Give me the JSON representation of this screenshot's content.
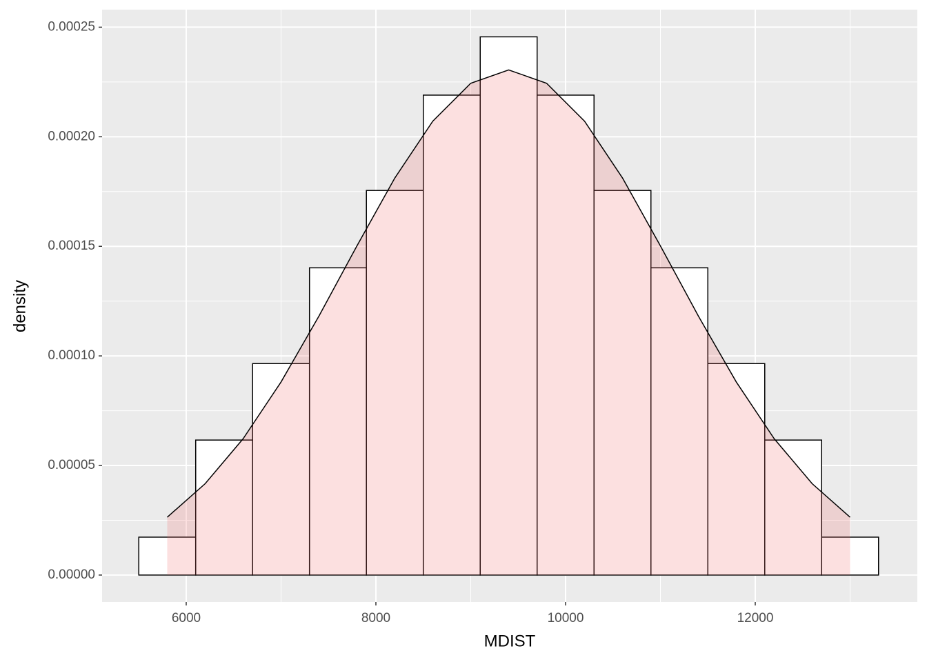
{
  "chart_data": {
    "type": "histogram",
    "x_label": "MDIST",
    "y_label": "density",
    "bins": [
      5500,
      6100,
      6700,
      7300,
      7900,
      8500,
      9100,
      9700,
      10300,
      10900,
      11500,
      12100,
      12700,
      13300
    ],
    "values": [
      1.73e-05,
      6.16e-05,
      9.65e-05,
      0.0001402,
      0.0001755,
      0.000219,
      0.0002456,
      0.000219,
      0.0001755,
      0.0001402,
      9.65e-05,
      6.16e-05,
      1.73e-05
    ],
    "bar_fill": "#ffffff",
    "bar_edge": "#000000",
    "density": {
      "x": [
        5800,
        6200,
        6600,
        7000,
        7400,
        7800,
        8200,
        8600,
        9000,
        9400,
        9800,
        10200,
        10600,
        11000,
        11400,
        11800,
        12200,
        12600,
        13000
      ],
      "y": [
        2.64e-05,
        4.17e-05,
        6.22e-05,
        8.81e-05,
        0.0001182,
        0.0001502,
        0.0001812,
        0.0002071,
        0.0002244,
        0.0002305,
        0.0002244,
        0.0002071,
        0.0001812,
        0.0001502,
        0.0001182,
        8.81e-05,
        6.22e-05,
        4.17e-05,
        2.64e-05
      ],
      "fill": "#f06464",
      "line": "#000000"
    },
    "xlim": [
      5113,
      13709
    ],
    "ylim": [
      -1.23e-05,
      0.000258
    ],
    "xticks": [
      6000,
      8000,
      10000,
      12000
    ],
    "yticks": [
      {
        "value": 0,
        "label": "0.00000"
      },
      {
        "value": 5e-05,
        "label": "0.00005"
      },
      {
        "value": 0.0001,
        "label": "0.00010"
      },
      {
        "value": 0.00015,
        "label": "0.00015"
      },
      {
        "value": 0.0002,
        "label": "0.00020"
      },
      {
        "value": 0.00025,
        "label": "0.00025"
      }
    ],
    "grid": true,
    "panel_background": "#ebebeb"
  }
}
